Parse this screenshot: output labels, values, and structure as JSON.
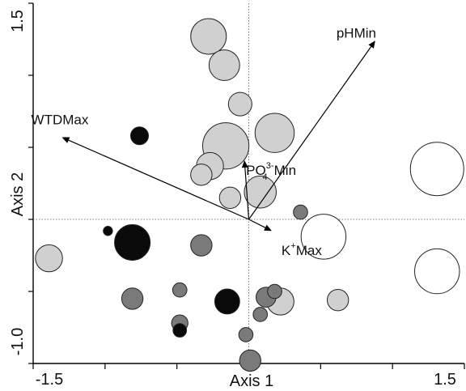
{
  "chart_data": {
    "type": "scatter",
    "title": "",
    "xlabel": "Axis 1",
    "ylabel": "Axis 2",
    "xlim": [
      -1.5,
      1.5
    ],
    "ylim": [
      -1.0,
      1.5
    ],
    "x_tick_labels": [
      "-1.5",
      "1.5"
    ],
    "y_tick_labels": [
      "1.5",
      "-1.0"
    ],
    "reference_lines": {
      "x": 0.0,
      "y": 0.0,
      "style": "dotted"
    },
    "grid": false,
    "colors": {
      "light": "#d0d0d0",
      "medium": "#7a7a7a",
      "dark": "#0a0a0a",
      "white": "#ffffff",
      "outline": "#222222"
    },
    "series": [
      {
        "fill": "light",
        "points": [
          [
            -0.28,
            1.27,
            5.0
          ],
          [
            -0.17,
            1.07,
            4.3
          ],
          [
            -0.06,
            0.8,
            3.3
          ],
          [
            0.18,
            0.6,
            5.5
          ],
          [
            -0.16,
            0.51,
            6.5
          ],
          [
            -0.27,
            0.37,
            3.8
          ],
          [
            -0.33,
            0.31,
            3.0
          ],
          [
            -0.13,
            0.15,
            3.0
          ],
          [
            0.08,
            0.19,
            4.5
          ],
          [
            -1.39,
            -0.27,
            3.8
          ],
          [
            0.22,
            -0.57,
            3.8
          ],
          [
            0.62,
            -0.56,
            3.0
          ]
        ]
      },
      {
        "fill": "medium",
        "points": [
          [
            0.36,
            0.05,
            2.0
          ],
          [
            -0.33,
            -0.18,
            3.0
          ],
          [
            -0.81,
            -0.55,
            3.0
          ],
          [
            -0.48,
            -0.49,
            2.0
          ],
          [
            0.12,
            -0.54,
            2.8
          ],
          [
            0.18,
            -0.5,
            2.0
          ],
          [
            0.08,
            -0.66,
            2.0
          ],
          [
            -0.48,
            -0.72,
            2.3
          ],
          [
            -0.02,
            -0.8,
            2.0
          ],
          [
            0.01,
            -0.98,
            3.0
          ]
        ]
      },
      {
        "fill": "dark",
        "points": [
          [
            -0.76,
            0.58,
            2.5
          ],
          [
            -0.98,
            -0.08,
            1.3
          ],
          [
            -0.81,
            -0.16,
            5.0
          ],
          [
            -0.15,
            -0.57,
            3.5
          ],
          [
            -0.48,
            -0.77,
            1.9
          ]
        ]
      },
      {
        "fill": "white",
        "points": [
          [
            0.52,
            -0.12,
            6.3
          ],
          [
            1.31,
            0.35,
            7.5
          ],
          [
            1.31,
            -0.36,
            6.3
          ]
        ]
      }
    ],
    "point_size_unit": "relative marker radius",
    "vectors": [
      {
        "label_base": "pHMin",
        "label_sup": "",
        "label_sub": "",
        "label_suffix": "",
        "x": 0.88,
        "y": 1.24
      },
      {
        "label_base": "WTDMax",
        "label_sup": "",
        "label_sub": "",
        "label_suffix": "",
        "x": -1.3,
        "y": 0.57
      },
      {
        "label_base": "PO",
        "label_sup": "3-",
        "label_sub": "4",
        "label_suffix": "Min",
        "x": -0.03,
        "y": 0.41
      },
      {
        "label_base": "K",
        "label_sup": "+",
        "label_sub": "",
        "label_suffix": "Max",
        "x": 0.16,
        "y": -0.08
      }
    ]
  }
}
